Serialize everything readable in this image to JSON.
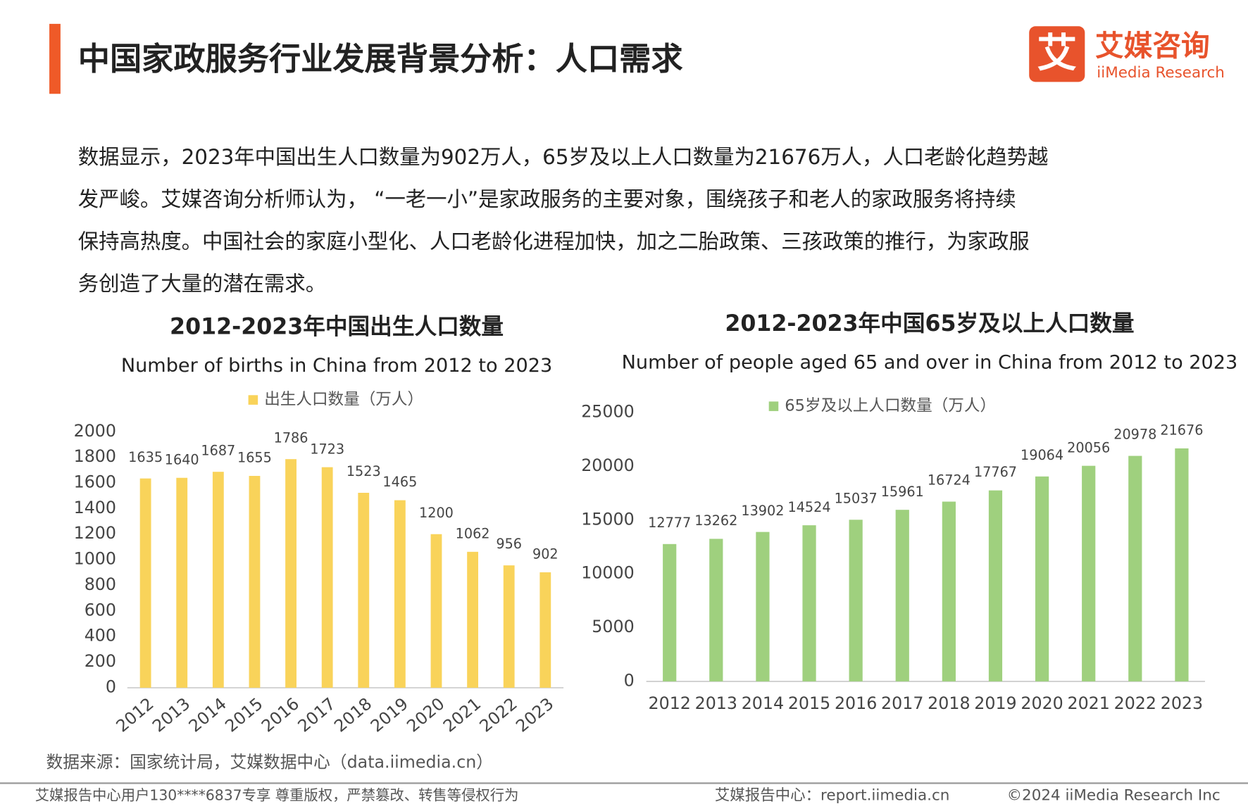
{
  "header": {
    "title": "中国家政服务行业发展背景分析：人口需求",
    "logo_icon": "艾",
    "logo_name": "艾媒咨询",
    "logo_en": "iiMedia Research"
  },
  "body": [
    "数据显示，2023年中国出生人口数量为902万人，65岁及以上人口数量为21676万人，人口老龄化趋势越",
    "发严峻。艾媒咨询分析师认为，  “一老一小”是家政服务的主要对象，围绕孩子和老人的家政服务将持续",
    "保持高热度。中国社会的家庭小型化、人口老龄化进程加快，加之二胎政策、三孩政策的推行，为家政服",
    "务创造了大量的潜在需求。"
  ],
  "chart_data": [
    {
      "type": "bar",
      "title": "2012-2023年中国出生人口数量",
      "subtitle": "Number of births in China from 2012 to 2023",
      "categories": [
        "2012",
        "2013",
        "2014",
        "2015",
        "2016",
        "2017",
        "2018",
        "2019",
        "2020",
        "2021",
        "2022",
        "2023"
      ],
      "series": [
        {
          "name": "出生人口数量（万人）",
          "color": "#f9d35a",
          "values": [
            1635,
            1640,
            1687,
            1655,
            1786,
            1723,
            1523,
            1465,
            1200,
            1062,
            956,
            902
          ]
        }
      ],
      "ylim": [
        0,
        2000
      ],
      "yticks": [
        0,
        200,
        400,
        600,
        800,
        1000,
        1200,
        1400,
        1600,
        1800,
        2000
      ],
      "grid": false,
      "legend": "top"
    },
    {
      "type": "bar",
      "title": "2012-2023年中国65岁及以上人口数量",
      "subtitle": "Number of people aged 65 and over in China from 2012 to 2023",
      "categories": [
        "2012",
        "2013",
        "2014",
        "2015",
        "2016",
        "2017",
        "2018",
        "2019",
        "2020",
        "2021",
        "2022",
        "2023"
      ],
      "series": [
        {
          "name": "65岁及以上人口数量（万人）",
          "color": "#9fd07e",
          "values": [
            12777,
            13262,
            13902,
            14524,
            15037,
            15961,
            16724,
            17767,
            19064,
            20056,
            20978,
            21676
          ]
        }
      ],
      "ylim": [
        0,
        25000
      ],
      "yticks": [
        0,
        5000,
        10000,
        15000,
        20000,
        25000
      ],
      "grid": false,
      "legend": "top"
    }
  ],
  "source": "数据来源：国家统计局，艾媒数据中心（data.iimedia.cn）",
  "footer": {
    "left": "艾媒报告中心用户130****6837专享 尊重版权，严禁篡改、转售等侵权行为",
    "site": "艾媒报告中心：report.iimedia.cn",
    "copyright": "©2024  iiMedia Research  Inc"
  }
}
